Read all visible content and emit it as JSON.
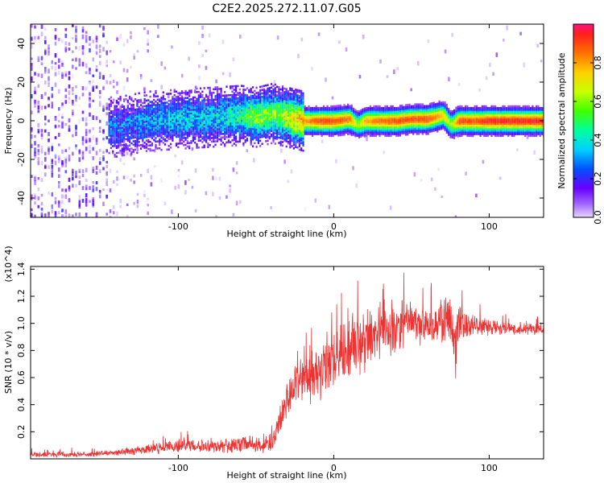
{
  "title": "C2E2.2025.272.11.07.G05",
  "chart_data": [
    {
      "type": "heatmap",
      "title": "C2E2.2025.272.11.07.G05",
      "xlabel": "Height of straight line (km)",
      "ylabel": "Frequency (Hz)",
      "xlim": [
        -195,
        135
      ],
      "ylim": [
        -50,
        50
      ],
      "xticks": [
        -100,
        0,
        100
      ],
      "yticks": [
        -40,
        -20,
        0,
        20,
        40
      ],
      "colorbar": {
        "label": "Normalized spectral amplitude",
        "range": [
          0.0,
          1.0
        ],
        "ticks": [
          0.0,
          0.2,
          0.4,
          0.6,
          0.8
        ]
      },
      "ridge": {
        "x": [
          -140,
          -120,
          -100,
          -80,
          -60,
          -50,
          -40,
          -30,
          -20,
          -10,
          0,
          10,
          15,
          20,
          30,
          40,
          50,
          60,
          70,
          75,
          80,
          90,
          100,
          110,
          120,
          135
        ],
        "freq": [
          -3,
          0,
          1,
          2,
          3,
          2,
          4,
          2,
          0,
          0,
          0,
          1,
          -2,
          0,
          0,
          0,
          1,
          1,
          3,
          -2,
          0,
          0,
          0,
          0,
          0,
          0
        ],
        "amplitude": [
          0.25,
          0.3,
          0.35,
          0.35,
          0.45,
          0.6,
          0.55,
          0.65,
          0.8,
          0.9,
          0.9,
          0.85,
          0.6,
          0.8,
          0.85,
          0.9,
          0.9,
          0.9,
          0.75,
          0.6,
          0.9,
          0.9,
          0.95,
          0.95,
          0.95,
          0.95
        ]
      }
    },
    {
      "type": "line",
      "xlabel": "Height of straight line (km)",
      "ylabel": "SNR (10 * v/v)",
      "multiplier": "(x10^4)",
      "xlim": [
        -195,
        135
      ],
      "ylim": [
        0,
        1.42
      ],
      "xticks": [
        -100,
        0,
        100
      ],
      "yticks": [
        0.2,
        0.4,
        0.6,
        0.8,
        1.0,
        1.2,
        1.4
      ],
      "color": "#ee3333",
      "series": [
        {
          "name": "SNR",
          "x": [
            -195,
            -170,
            -145,
            -130,
            -110,
            -95,
            -80,
            -65,
            -55,
            -45,
            -40,
            -35,
            -30,
            -25,
            -20,
            -15,
            -10,
            -5,
            0,
            5,
            10,
            15,
            20,
            25,
            30,
            35,
            40,
            45,
            50,
            55,
            60,
            65,
            70,
            75,
            78,
            80,
            85,
            90,
            100,
            110,
            120,
            135
          ],
          "y": [
            0.03,
            0.03,
            0.04,
            0.06,
            0.08,
            0.1,
            0.1,
            0.09,
            0.12,
            0.1,
            0.12,
            0.25,
            0.45,
            0.55,
            0.6,
            0.62,
            0.65,
            0.72,
            0.75,
            0.78,
            0.8,
            0.85,
            0.88,
            0.92,
            0.92,
            0.95,
            0.97,
            1.0,
            1.0,
            0.98,
            0.97,
            0.98,
            1.02,
            1.05,
            0.8,
            1.0,
            1.0,
            1.0,
            0.98,
            0.97,
            0.96,
            0.96
          ],
          "noise": [
            0.02,
            0.02,
            0.02,
            0.03,
            0.04,
            0.05,
            0.05,
            0.05,
            0.06,
            0.06,
            0.06,
            0.1,
            0.15,
            0.18,
            0.2,
            0.2,
            0.2,
            0.22,
            0.22,
            0.22,
            0.22,
            0.22,
            0.22,
            0.2,
            0.2,
            0.2,
            0.18,
            0.18,
            0.16,
            0.15,
            0.12,
            0.12,
            0.15,
            0.18,
            0.25,
            0.15,
            0.1,
            0.08,
            0.06,
            0.05,
            0.04,
            0.04
          ]
        }
      ]
    }
  ]
}
